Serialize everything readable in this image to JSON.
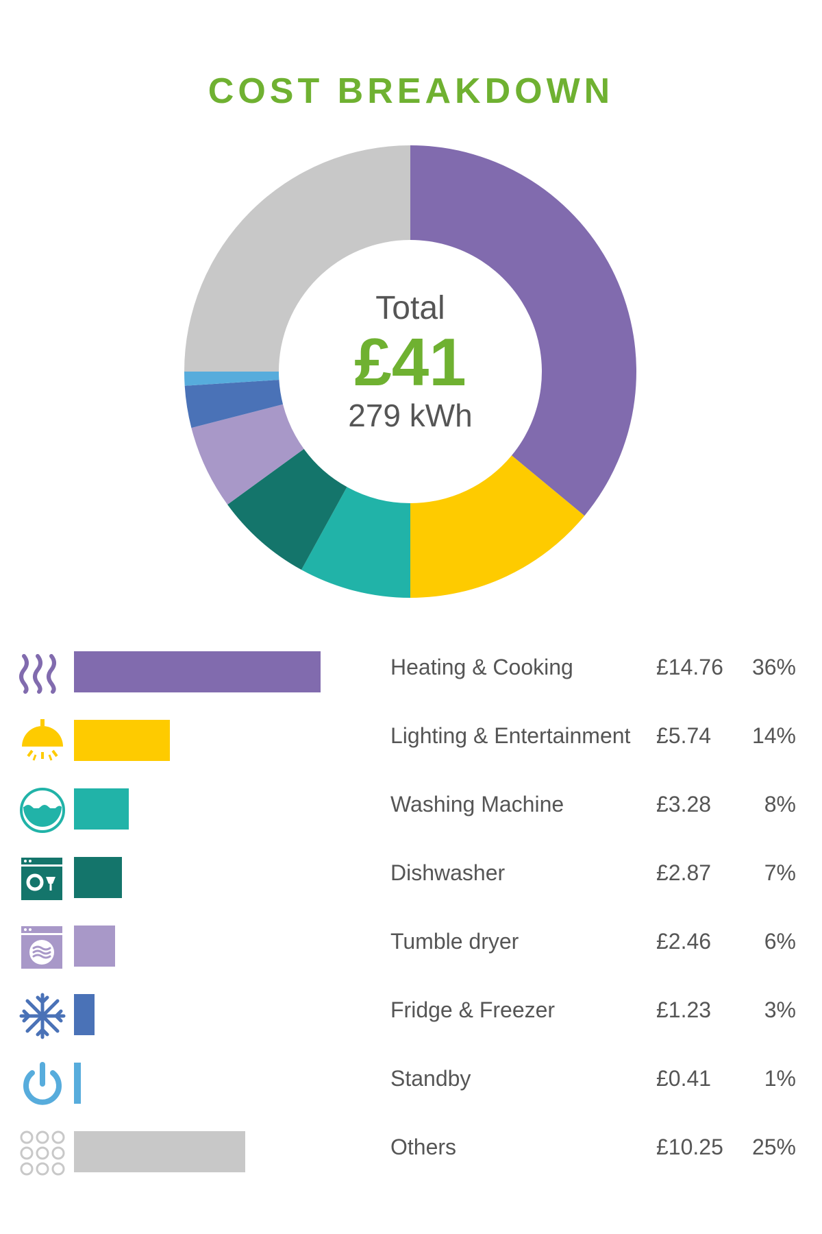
{
  "chart_data": {
    "type": "pie",
    "title": "COST BREAKDOWN",
    "center": {
      "label": "Total",
      "value": "£41",
      "sub": "279 kWh"
    },
    "categories": [
      "Heating & Cooking",
      "Lighting & Entertainment",
      "Washing Machine",
      "Dishwasher",
      "Tumble dryer",
      "Fridge & Freezer",
      "Standby",
      "Others"
    ],
    "values": [
      14.76,
      5.74,
      3.28,
      2.87,
      2.46,
      1.23,
      0.41,
      10.25
    ],
    "cost_labels": [
      "£14.76",
      "£5.74",
      "£3.28",
      "£2.87",
      "£2.46",
      "£1.23",
      "£0.41",
      "£10.25"
    ],
    "percent_labels": [
      "36%",
      "14%",
      "8%",
      "7%",
      "6%",
      "3%",
      "1%",
      "25%"
    ],
    "percents": [
      36,
      14,
      8,
      7,
      6,
      3,
      1,
      25
    ],
    "colors": [
      "#816bae",
      "#fecb00",
      "#21b3a8",
      "#14756b",
      "#a898c8",
      "#4a72b7",
      "#57acdc",
      "#c8c8c8"
    ],
    "icons": [
      "heat-waves-icon",
      "ceiling-lamp-icon",
      "washing-machine-icon",
      "dishwasher-icon",
      "tumble-dryer-icon",
      "snowflake-icon",
      "power-icon",
      "dots-grid-icon"
    ]
  }
}
